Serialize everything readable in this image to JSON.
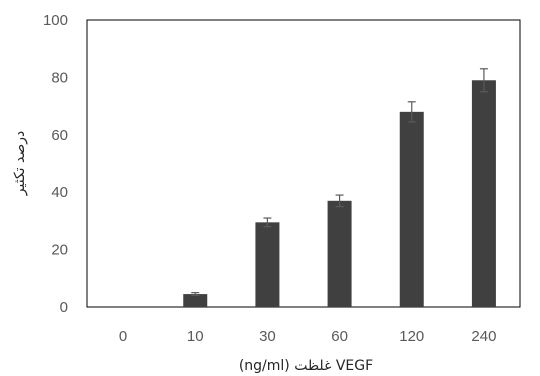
{
  "chart_data": {
    "type": "bar",
    "title": "",
    "xlabel": "(ng/ml) غلظت VEGF",
    "ylabel": "درصد تکثیر",
    "categories": [
      "0",
      "10",
      "30",
      "60",
      "120",
      "240"
    ],
    "series": [
      {
        "values": [
          0,
          4.5,
          29.5,
          37,
          68,
          79
        ],
        "errors": [
          0,
          0.5,
          1.5,
          2,
          3.5,
          4
        ],
        "color": "#404040"
      }
    ],
    "ylim": [
      0,
      100
    ],
    "yticks": [
      0,
      20,
      40,
      60,
      80,
      100
    ],
    "grid": false,
    "legend": "none"
  }
}
